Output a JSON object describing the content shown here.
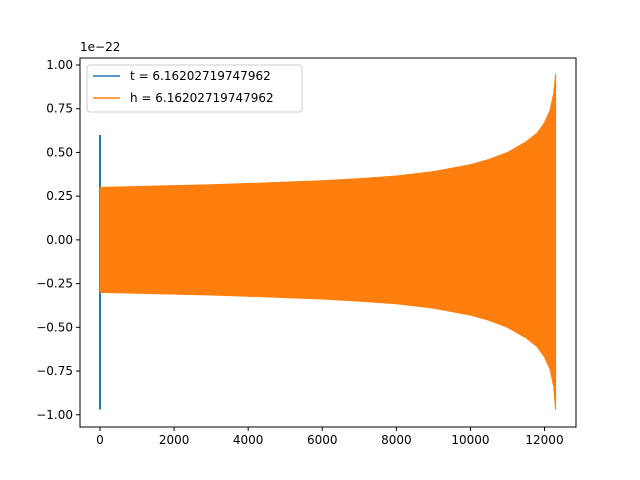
{
  "chart_data": {
    "type": "line",
    "title": "",
    "xlabel": "",
    "ylabel": "",
    "y_offset_label": "1e−22",
    "xlim": [
      -540,
      12850
    ],
    "ylim": [
      -1.07,
      1.04
    ],
    "x_ticks": [
      0,
      2000,
      4000,
      6000,
      8000,
      10000,
      12000
    ],
    "x_tick_labels": [
      "0",
      "2000",
      "4000",
      "6000",
      "8000",
      "10000",
      "12000"
    ],
    "y_ticks": [
      1.0,
      0.75,
      0.5,
      0.25,
      0.0,
      -0.25,
      -0.5,
      -0.75,
      -1.0
    ],
    "y_tick_labels": [
      "1.00",
      "0.75",
      "0.50",
      "0.25",
      "0.00",
      "−0.25",
      "−0.50",
      "−0.75",
      "−1.00"
    ],
    "grid": false,
    "legend_position": "top-left",
    "series": [
      {
        "name": "t = 6.16202719747962",
        "color": "#1f77b4",
        "kind": "spike",
        "x": [
          0,
          0
        ],
        "y": [
          0.6,
          -0.97
        ]
      },
      {
        "name": "h = 6.16202719747962",
        "color": "#ff7f0e",
        "kind": "oscillation-envelope",
        "x": [
          0,
          1000,
          2000,
          3000,
          4000,
          5000,
          6000,
          7000,
          8000,
          9000,
          10000,
          10500,
          11000,
          11500,
          11800,
          12000,
          12150,
          12250,
          12300
        ],
        "upper": [
          0.3,
          0.305,
          0.31,
          0.315,
          0.322,
          0.33,
          0.338,
          0.35,
          0.365,
          0.39,
          0.43,
          0.46,
          0.5,
          0.56,
          0.61,
          0.67,
          0.74,
          0.84,
          0.95
        ],
        "lower": [
          -0.3,
          -0.305,
          -0.31,
          -0.315,
          -0.322,
          -0.33,
          -0.338,
          -0.35,
          -0.365,
          -0.39,
          -0.43,
          -0.46,
          -0.5,
          -0.56,
          -0.61,
          -0.67,
          -0.74,
          -0.84,
          -0.97
        ]
      }
    ]
  }
}
